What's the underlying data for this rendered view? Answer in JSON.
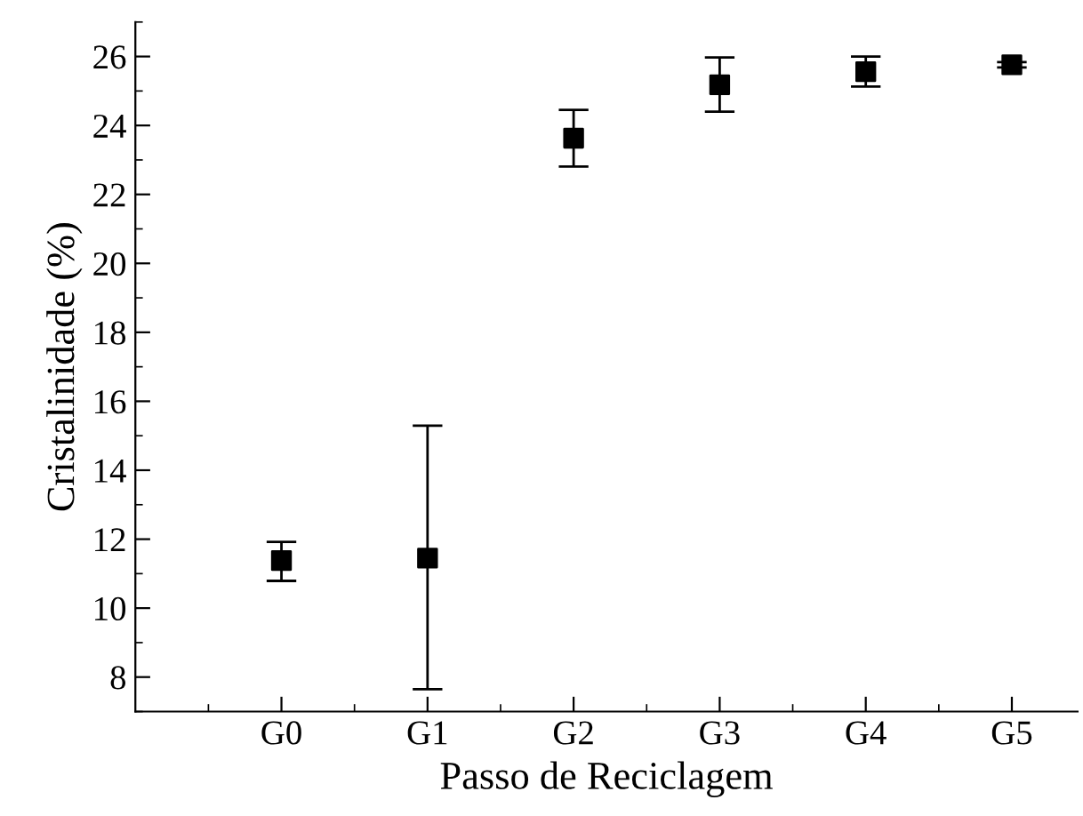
{
  "chart_data": {
    "type": "scatter",
    "xlabel": "Passo de Reciclagem",
    "ylabel": "Cristalinidade (%)",
    "categories": [
      "G0",
      "G1",
      "G2",
      "G3",
      "G4",
      "G5"
    ],
    "series": [
      {
        "color": "#000000",
        "values": [
          11.38,
          11.45,
          23.63,
          25.18,
          25.56,
          25.76
        ],
        "errors": [
          [
            10.79,
            11.92
          ],
          [
            7.65,
            15.29
          ],
          [
            22.81,
            24.45
          ],
          [
            24.4,
            25.97
          ],
          [
            25.13,
            26.0
          ],
          [
            25.68,
            25.84
          ]
        ]
      }
    ],
    "ylim": [
      7,
      27
    ],
    "yticks": [
      8,
      10,
      12,
      14,
      16,
      18,
      20,
      22,
      24,
      26
    ],
    "marker": "square",
    "grid": false
  }
}
